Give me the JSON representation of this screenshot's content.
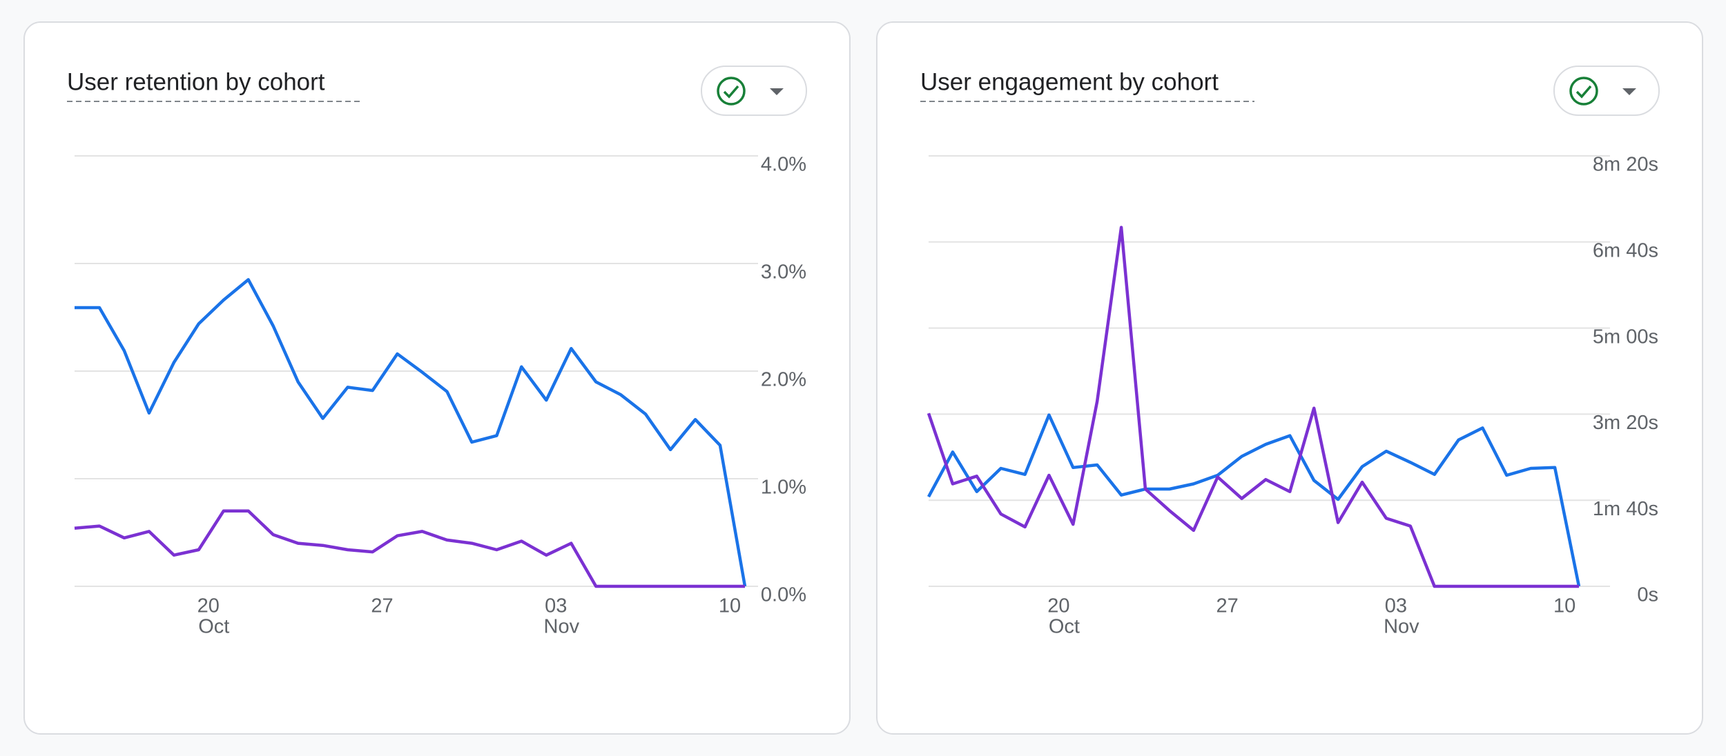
{
  "chart_data": [
    {
      "type": "line",
      "title": "User retention by cohort",
      "categories": [
        null,
        null,
        null,
        null,
        null,
        "20",
        null,
        null,
        null,
        null,
        null,
        null,
        "27",
        null,
        null,
        null,
        null,
        null,
        null,
        "03",
        null,
        null,
        null,
        null,
        null,
        null,
        "10",
        null
      ],
      "category_sublabels": [
        null,
        null,
        null,
        null,
        null,
        "Oct",
        null,
        null,
        null,
        null,
        null,
        null,
        null,
        null,
        null,
        null,
        null,
        null,
        null,
        "Nov",
        null,
        null,
        null,
        null,
        null,
        null,
        null,
        null
      ],
      "ylim": [
        0,
        4
      ],
      "yticks": [
        {
          "value": 0,
          "label": "0.0%"
        },
        {
          "value": 1,
          "label": "1.0%"
        },
        {
          "value": 2,
          "label": "2.0%"
        },
        {
          "value": 3,
          "label": "3.0%"
        },
        {
          "value": 4,
          "label": "4.0%"
        }
      ],
      "grid": true,
      "series": [
        {
          "color": "#1a73e8",
          "values": [
            2.59,
            2.59,
            2.19,
            1.61,
            2.08,
            2.44,
            2.66,
            2.85,
            2.42,
            1.9,
            1.56,
            1.85,
            1.82,
            2.16,
            1.99,
            1.81,
            1.34,
            1.4,
            2.04,
            1.73,
            2.21,
            1.9,
            1.78,
            1.6,
            1.27,
            1.55,
            1.31,
            0
          ]
        },
        {
          "color": "#7b31d2",
          "values": [
            0.54,
            0.56,
            0.45,
            0.51,
            0.29,
            0.34,
            0.7,
            0.7,
            0.48,
            0.4,
            0.38,
            0.34,
            0.32,
            0.47,
            0.51,
            0.43,
            0.4,
            0.34,
            0.42,
            0.29,
            0.4,
            0,
            0,
            0,
            0,
            0,
            0,
            0
          ]
        }
      ]
    },
    {
      "type": "line",
      "title": "User engagement by cohort",
      "categories": [
        null,
        null,
        null,
        null,
        null,
        "20",
        null,
        null,
        null,
        null,
        null,
        null,
        "27",
        null,
        null,
        null,
        null,
        null,
        null,
        "03",
        null,
        null,
        null,
        null,
        null,
        null,
        "10",
        null
      ],
      "category_sublabels": [
        null,
        null,
        null,
        null,
        null,
        "Oct",
        null,
        null,
        null,
        null,
        null,
        null,
        null,
        null,
        null,
        null,
        null,
        null,
        null,
        "Nov",
        null,
        null,
        null,
        null,
        null,
        null,
        null,
        null
      ],
      "ylim": [
        0,
        500
      ],
      "yticks": [
        {
          "value": 0,
          "label": "0s"
        },
        {
          "value": 100,
          "label": "1m 40s"
        },
        {
          "value": 200,
          "label": "3m 20s"
        },
        {
          "value": 300,
          "label": "5m 00s"
        },
        {
          "value": 400,
          "label": "6m 40s"
        },
        {
          "value": 500,
          "label": "8m 20s"
        }
      ],
      "grid": true,
      "series": [
        {
          "color": "#1a73e8",
          "values": [
            104,
            156,
            110,
            137,
            130,
            199,
            138,
            141,
            106,
            113,
            113,
            119,
            129,
            151,
            165,
            175,
            123,
            101,
            139,
            157,
            144,
            130,
            170,
            184,
            129,
            137,
            138,
            0
          ]
        },
        {
          "color": "#7b31d2",
          "values": [
            201,
            119,
            128,
            84,
            69,
            129,
            72,
            215,
            417,
            113,
            88,
            65,
            127,
            102,
            124,
            110,
            207,
            74,
            121,
            79,
            70,
            0,
            0,
            0,
            0,
            0,
            0,
            0
          ]
        }
      ]
    }
  ]
}
